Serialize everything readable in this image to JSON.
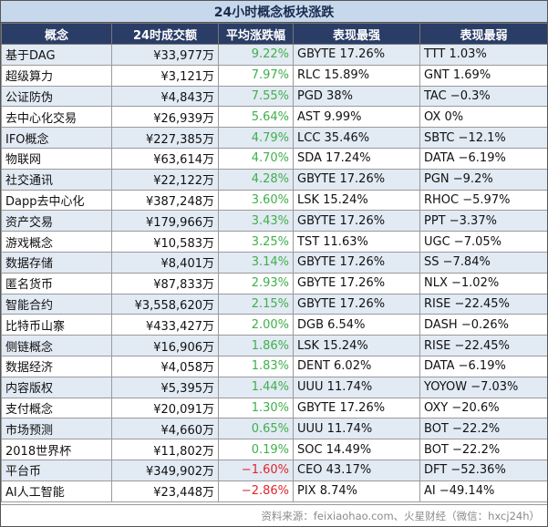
{
  "title": "24小时概念板块涨跌",
  "headers": [
    "概念",
    "24时成交额",
    "平均涨跌幅",
    "表现最强",
    "表现最弱"
  ],
  "colors": {
    "header_bg": "#2a3d66",
    "title_bg": "#c8d8ec",
    "stripe": "#e2eaf4",
    "positive": "#3fb04a",
    "negative": "#e0262a"
  },
  "rows": [
    {
      "name": "基于DAG",
      "volume": "¥33,977万",
      "change": "9.22%",
      "dir": "up",
      "best": "GBYTE 17.26%",
      "worst": "TTT 1.03%"
    },
    {
      "name": "超级算力",
      "volume": "¥3,121万",
      "change": "7.97%",
      "dir": "up",
      "best": "RLC 15.89%",
      "worst": "GNT 1.69%"
    },
    {
      "name": "公证防伪",
      "volume": "¥4,843万",
      "change": "7.55%",
      "dir": "up",
      "best": "PGD 38%",
      "worst": "TAC −0.3%"
    },
    {
      "name": "去中心化交易",
      "volume": "¥26,939万",
      "change": "5.64%",
      "dir": "up",
      "best": "AST 9.99%",
      "worst": "OX 0%"
    },
    {
      "name": "IFO概念",
      "volume": "¥227,385万",
      "change": "4.79%",
      "dir": "up",
      "best": "LCC 35.46%",
      "worst": "SBTC −12.1%"
    },
    {
      "name": "物联网",
      "volume": "¥63,614万",
      "change": "4.70%",
      "dir": "up",
      "best": "SDA 17.24%",
      "worst": "DATA −6.19%"
    },
    {
      "name": "社交通讯",
      "volume": "¥22,122万",
      "change": "4.28%",
      "dir": "up",
      "best": "GBYTE 17.26%",
      "worst": "PGN −9.2%"
    },
    {
      "name": "Dapp去中心化",
      "volume": "¥387,248万",
      "change": "3.60%",
      "dir": "up",
      "best": "LSK 15.24%",
      "worst": "RHOC −5.97%"
    },
    {
      "name": "资产交易",
      "volume": "¥179,966万",
      "change": "3.43%",
      "dir": "up",
      "best": "GBYTE 17.26%",
      "worst": "PPT −3.37%"
    },
    {
      "name": "游戏概念",
      "volume": "¥10,583万",
      "change": "3.25%",
      "dir": "up",
      "best": "TST 11.63%",
      "worst": "UGC −7.05%"
    },
    {
      "name": "数据存储",
      "volume": "¥8,401万",
      "change": "3.14%",
      "dir": "up",
      "best": "GBYTE 17.26%",
      "worst": "SS −7.84%"
    },
    {
      "name": "匿名货币",
      "volume": "¥87,833万",
      "change": "2.93%",
      "dir": "up",
      "best": "GBYTE 17.26%",
      "worst": "NLX −1.02%"
    },
    {
      "name": "智能合约",
      "volume": "¥3,558,620万",
      "change": "2.15%",
      "dir": "up",
      "best": "GBYTE 17.26%",
      "worst": "RISE −22.45%"
    },
    {
      "name": "比特币山寨",
      "volume": "¥433,427万",
      "change": "2.00%",
      "dir": "up",
      "best": "DGB 6.54%",
      "worst": "DASH −0.26%"
    },
    {
      "name": "侧链概念",
      "volume": "¥16,906万",
      "change": "1.86%",
      "dir": "up",
      "best": "LSK 15.24%",
      "worst": "RISE −22.45%"
    },
    {
      "name": "数据经济",
      "volume": "¥4,058万",
      "change": "1.83%",
      "dir": "up",
      "best": "DENT 6.02%",
      "worst": "DATA −6.19%"
    },
    {
      "name": "内容版权",
      "volume": "¥5,395万",
      "change": "1.44%",
      "dir": "up",
      "best": "UUU 11.74%",
      "worst": "YOYOW −7.03%"
    },
    {
      "name": "支付概念",
      "volume": "¥20,091万",
      "change": "1.30%",
      "dir": "up",
      "best": "GBYTE 17.26%",
      "worst": "OXY −20.6%"
    },
    {
      "name": "市场预测",
      "volume": "¥4,660万",
      "change": "0.65%",
      "dir": "up",
      "best": "UUU 11.74%",
      "worst": "BOT −22.2%"
    },
    {
      "name": "2018世界杯",
      "volume": "¥11,802万",
      "change": "0.19%",
      "dir": "up",
      "best": "SOC 14.49%",
      "worst": "BOT −22.2%"
    },
    {
      "name": "平台币",
      "volume": "¥349,902万",
      "change": "−1.60%",
      "dir": "down",
      "best": "CEO 43.17%",
      "worst": "DFT −52.36%"
    },
    {
      "name": "AI人工智能",
      "volume": "¥23,448万",
      "change": "−2.86%",
      "dir": "down",
      "best": "PIX 8.74%",
      "worst": "AI −49.14%"
    }
  ],
  "footer": "资料来源：feixiaohao.com、火星财经（微信：hxcj24h）"
}
